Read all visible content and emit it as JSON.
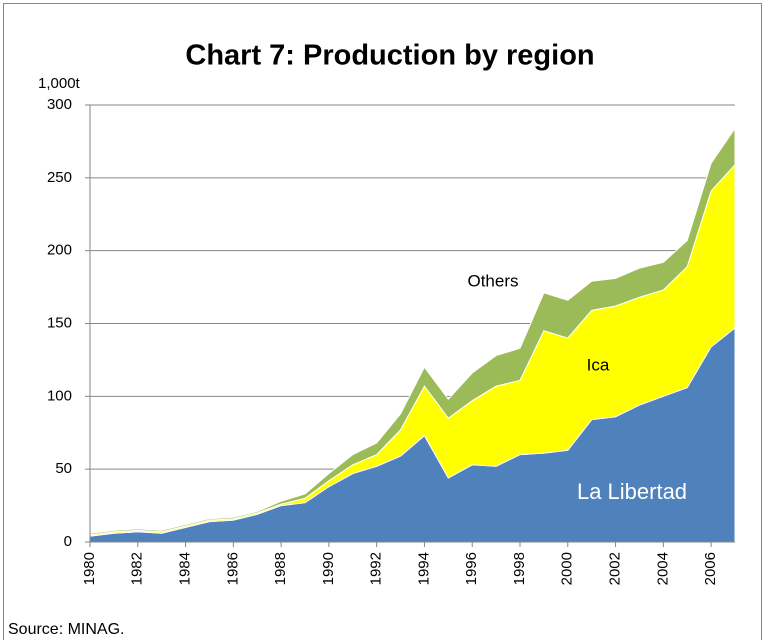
{
  "chart_data": {
    "type": "stacked_area",
    "title": "Chart 7: Production by region",
    "y_unit_label": "1,000t",
    "source": "Source: MINAG.",
    "x": [
      1980,
      1981,
      1982,
      1983,
      1984,
      1985,
      1986,
      1987,
      1988,
      1989,
      1990,
      1991,
      1992,
      1993,
      1994,
      1995,
      1996,
      1997,
      1998,
      1999,
      2000,
      2001,
      2002,
      2003,
      2004,
      2005,
      2006,
      2007
    ],
    "xlim": [
      1980,
      2007
    ],
    "xticks": [
      1980,
      1982,
      1984,
      1986,
      1988,
      1990,
      1992,
      1994,
      1996,
      1998,
      2000,
      2002,
      2004,
      2006
    ],
    "ylim": [
      0,
      300
    ],
    "yticks": [
      0,
      50,
      100,
      150,
      200,
      250,
      300
    ],
    "grid": true,
    "series": [
      {
        "name": "La Libertad",
        "color": "#4f81bd",
        "values": [
          4,
          6,
          7,
          6,
          10,
          14,
          15,
          19,
          25,
          27,
          38,
          47,
          52,
          59,
          73,
          44,
          53,
          52,
          60,
          61,
          63,
          84,
          86,
          94,
          100,
          106,
          134,
          147
        ]
      },
      {
        "name": "Ica",
        "color": "#ffff00",
        "values": [
          1,
          1,
          1,
          1,
          1,
          1,
          1,
          1,
          1,
          3,
          4,
          6,
          8,
          18,
          34,
          41,
          44,
          55,
          51,
          84,
          77,
          75,
          76,
          74,
          73,
          83,
          107,
          112
        ]
      },
      {
        "name": "Others",
        "color": "#9bbb59",
        "values": [
          1,
          1,
          1,
          1,
          1,
          1,
          1,
          1,
          2,
          3,
          5,
          7,
          8,
          11,
          13,
          13,
          19,
          21,
          22,
          26,
          26,
          20,
          19,
          20,
          19,
          18,
          19,
          25
        ]
      }
    ]
  }
}
